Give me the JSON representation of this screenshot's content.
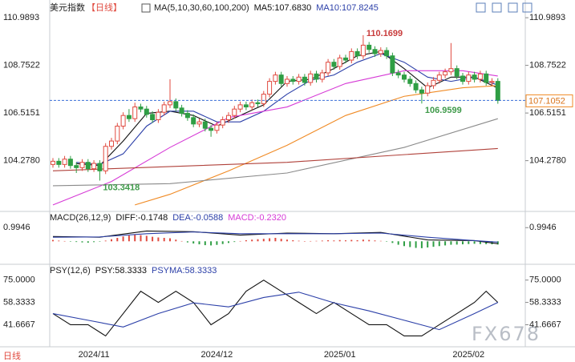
{
  "chart_data": [
    {
      "type": "candlestick",
      "title": "美元指数",
      "subtitle": "【日线】",
      "indicator": "MA(5,10,30,60,100,200)",
      "categories": [
        null,
        null,
        null,
        null,
        null,
        null,
        null,
        "2024/11",
        null,
        null,
        null,
        null,
        null,
        null,
        null,
        null,
        null,
        null,
        null,
        null,
        null,
        null,
        null,
        null,
        null,
        null,
        null,
        null,
        "2024/12",
        null,
        null,
        null,
        null,
        null,
        null,
        null,
        null,
        null,
        null,
        null,
        null,
        null,
        null,
        null,
        null,
        null,
        null,
        null,
        null,
        "2025/01",
        null,
        null,
        null,
        null,
        null,
        null,
        null,
        null,
        null,
        null,
        null,
        null,
        null,
        null,
        null,
        null,
        null,
        null,
        null,
        null,
        null,
        "2025/02",
        null,
        null,
        null,
        null,
        null
      ],
      "open": [
        104.1,
        104.25,
        104.1,
        104.35,
        104.05,
        103.95,
        104.2,
        103.9,
        104.15,
        103.8,
        104.95,
        105.2,
        105.9,
        106.4,
        106.25,
        106.8,
        106.7,
        106.45,
        106.2,
        106.55,
        106.9,
        107.05,
        106.75,
        106.5,
        106.3,
        106.0,
        106.1,
        105.8,
        105.7,
        105.95,
        106.2,
        106.4,
        106.7,
        106.9,
        106.8,
        107.0,
        106.95,
        107.4,
        108.0,
        108.3,
        107.9,
        108.1,
        108.0,
        108.2,
        107.95,
        108.35,
        108.1,
        108.4,
        108.9,
        108.7,
        109.1,
        109.0,
        109.4,
        109.2,
        109.7,
        109.5,
        109.3,
        109.45,
        109.2,
        108.4,
        108.3,
        108.1,
        107.9,
        107.6,
        107.45,
        107.8,
        108.05,
        108.3,
        108.45,
        108.6,
        108.25,
        108.0,
        108.3,
        108.1,
        108.35,
        107.95,
        108.0
      ],
      "high": [
        104.4,
        104.4,
        104.5,
        104.5,
        104.2,
        104.35,
        104.35,
        104.3,
        104.3,
        105.1,
        105.35,
        106.05,
        106.55,
        106.7,
        107.0,
        106.95,
        106.85,
        106.6,
        106.7,
        107.05,
        108.1,
        107.2,
        106.9,
        106.65,
        106.45,
        106.25,
        106.25,
        105.95,
        106.1,
        106.35,
        106.55,
        106.85,
        107.05,
        107.05,
        107.15,
        107.15,
        107.55,
        108.15,
        108.45,
        108.45,
        108.25,
        108.25,
        108.35,
        108.35,
        108.5,
        108.5,
        108.55,
        109.05,
        109.05,
        109.25,
        109.25,
        109.55,
        109.55,
        110.1699,
        109.85,
        109.65,
        109.6,
        109.6,
        109.35,
        108.55,
        108.45,
        108.25,
        108.05,
        107.75,
        107.95,
        108.2,
        108.45,
        108.6,
        109.8,
        108.75,
        108.4,
        108.45,
        108.45,
        108.5,
        108.5,
        108.15,
        108.15
      ],
      "low": [
        103.95,
        103.95,
        103.95,
        103.9,
        103.7,
        103.8,
        103.75,
        103.75,
        103.3418,
        103.65,
        104.8,
        105.05,
        105.75,
        106.1,
        106.1,
        106.55,
        106.3,
        106.05,
        106.05,
        106.4,
        106.75,
        106.6,
        106.35,
        106.15,
        105.85,
        105.85,
        105.65,
        105.4,
        105.55,
        105.8,
        106.05,
        106.25,
        106.55,
        106.65,
        106.65,
        106.8,
        106.8,
        107.25,
        107.85,
        107.75,
        107.75,
        107.85,
        107.85,
        107.8,
        107.8,
        107.95,
        107.95,
        108.25,
        108.55,
        108.55,
        108.85,
        108.85,
        109.05,
        109.05,
        109.35,
        109.15,
        109.15,
        109.05,
        108.25,
        108.15,
        107.95,
        107.75,
        107.45,
        106.9599,
        107.3,
        107.65,
        107.9,
        108.15,
        108.3,
        108.1,
        107.85,
        107.85,
        107.95,
        107.95,
        107.8,
        107.8,
        106.95
      ],
      "close": [
        104.25,
        104.1,
        104.35,
        104.05,
        103.95,
        104.2,
        103.9,
        104.15,
        103.8,
        104.95,
        105.2,
        105.9,
        106.4,
        106.25,
        106.8,
        106.7,
        106.45,
        106.2,
        106.55,
        106.9,
        107.05,
        106.75,
        106.5,
        106.3,
        106.0,
        106.1,
        105.8,
        105.7,
        105.95,
        106.2,
        106.4,
        106.7,
        106.9,
        106.8,
        107.0,
        106.95,
        107.4,
        108.0,
        108.3,
        107.9,
        108.1,
        108.0,
        108.2,
        107.95,
        108.35,
        108.1,
        108.4,
        108.9,
        108.7,
        109.1,
        109.0,
        109.4,
        109.2,
        109.7,
        109.5,
        109.3,
        109.45,
        109.2,
        108.4,
        108.3,
        108.1,
        107.9,
        107.6,
        107.45,
        107.8,
        108.05,
        108.3,
        108.45,
        108.6,
        108.25,
        108.0,
        108.3,
        108.1,
        108.35,
        107.95,
        108.0,
        107.1052
      ],
      "up_color": "#e04a3f",
      "down_color": "#2f9e44",
      "ylim": [
        101.97,
        111.52
      ],
      "yticks": [
        110.9893,
        108.7522,
        106.5151,
        {
          "value": 104.278,
          "label": "104.2780"
        }
      ],
      "last_price": 107.1052,
      "last_price_color": "#f08a24",
      "last_line_color": "#3a6fd8",
      "annotations": [
        {
          "value": 110.1699,
          "x": 53,
          "color": "#c83c3c"
        },
        {
          "value": 106.9599,
          "x": 63,
          "color": "#3f9a4a"
        },
        {
          "value": 103.3418,
          "x": 8,
          "color": "#3f9a4a"
        }
      ],
      "series": [
        {
          "name": "MA5:107.6830",
          "color": "#111111",
          "x": [
            4,
            8,
            12,
            16,
            20,
            24,
            28,
            32,
            36,
            40,
            44,
            48,
            52,
            56,
            60,
            64,
            68,
            72,
            76
          ],
          "values": [
            104.14,
            104.05,
            105.2,
            106.5,
            106.6,
            106.4,
            105.9,
            106.4,
            106.9,
            108.0,
            108.1,
            108.6,
            109.2,
            109.4,
            108.6,
            107.7,
            108.2,
            108.2,
            107.683
          ]
        },
        {
          "name": "MA10:107.8245",
          "color": "#2b3fa8",
          "x": [
            4,
            8,
            12,
            16,
            20,
            24,
            28,
            32,
            36,
            40,
            44,
            48,
            52,
            56,
            60,
            64,
            68,
            72,
            76
          ],
          "values": [
            104.2,
            104.1,
            104.6,
            105.9,
            106.6,
            106.6,
            106.1,
            106.1,
            106.6,
            107.4,
            108.05,
            108.3,
            108.9,
            109.3,
            108.9,
            108.2,
            108.0,
            108.2,
            107.8245
          ]
        },
        {
          "color": "#d63ad6",
          "x": [
            0,
            10,
            20,
            30,
            40,
            50,
            60,
            70,
            76
          ],
          "values": [
            102.2,
            103.3,
            104.9,
            106.3,
            106.8,
            107.9,
            108.5,
            108.5,
            108.25
          ]
        },
        {
          "color": "#f08a24",
          "x": [
            14,
            20,
            30,
            40,
            50,
            60,
            70,
            76
          ],
          "values": [
            102.2,
            102.7,
            103.8,
            105.0,
            106.4,
            107.3,
            107.7,
            107.8
          ]
        },
        {
          "color": "#8a8a8a",
          "x": [
            0,
            20,
            40,
            60,
            76
          ],
          "values": [
            103.1,
            103.2,
            103.7,
            104.9,
            106.25
          ]
        },
        {
          "color": "#b0413a",
          "x": [
            0,
            40,
            76
          ],
          "values": [
            103.8,
            104.2,
            104.85
          ]
        }
      ]
    },
    {
      "type": "macd",
      "title": "MACD(26,12,9)",
      "ylim": [
        -1.5,
        2.0
      ],
      "yticks": [
        0.9946
      ],
      "up_color": "#e04a3f",
      "down_color": "#2f9e44",
      "series": [
        {
          "name": "DIFF:-0.1748",
          "type": "line",
          "color": "#111111",
          "x": [
            0,
            8,
            16,
            24,
            32,
            40,
            48,
            56,
            64,
            72,
            76
          ],
          "values": [
            0.35,
            0.3,
            0.75,
            0.7,
            0.45,
            0.6,
            0.55,
            0.65,
            0.1,
            0.05,
            -0.1748
          ]
        },
        {
          "name": "DEA:-0.0588",
          "type": "line",
          "color": "#2b3fa8",
          "x": [
            0,
            8,
            16,
            24,
            32,
            40,
            48,
            56,
            64,
            72,
            76
          ],
          "values": [
            0.3,
            0.32,
            0.55,
            0.68,
            0.55,
            0.55,
            0.55,
            0.6,
            0.3,
            0.05,
            -0.0588
          ]
        },
        {
          "name": "MACD:-0.2320",
          "type": "bar",
          "color": "#d63ad6",
          "values": [
            0.1,
            0.05,
            0.02,
            -0.02,
            -0.05,
            -0.08,
            -0.1,
            -0.06,
            -0.03,
            0.05,
            0.15,
            0.25,
            0.35,
            0.42,
            0.48,
            0.45,
            0.4,
            0.33,
            0.28,
            0.25,
            0.22,
            0.12,
            0.02,
            -0.08,
            -0.16,
            -0.22,
            -0.28,
            -0.3,
            -0.26,
            -0.2,
            -0.12,
            -0.05,
            0.02,
            0.08,
            0.12,
            0.15,
            0.18,
            0.22,
            0.25,
            0.18,
            0.12,
            0.08,
            0.04,
            0.0,
            0.02,
            0.03,
            0.05,
            0.08,
            0.06,
            0.09,
            0.07,
            0.1,
            0.08,
            0.12,
            0.1,
            0.06,
            0.03,
            -0.02,
            -0.12,
            -0.25,
            -0.35,
            -0.42,
            -0.48,
            -0.5,
            -0.45,
            -0.4,
            -0.35,
            -0.3,
            -0.25,
            -0.24,
            -0.22,
            -0.2,
            -0.18,
            -0.2,
            -0.21,
            -0.22,
            -0.232
          ]
        }
      ]
    },
    {
      "type": "psy",
      "title": "PSY(12,6)",
      "ylim": [
        27,
        85
      ],
      "yticks": [
        {
          "value": 75,
          "label": "75.0000"
        },
        58.3333,
        41.6667
      ],
      "series": [
        {
          "name": "PSY:58.3333",
          "type": "line",
          "color": "#111111",
          "x": [
            0,
            3,
            6,
            9,
            12,
            15,
            18,
            21,
            24,
            27,
            30,
            33,
            36,
            39,
            42,
            45,
            48,
            51,
            54,
            57,
            60,
            63,
            66,
            69,
            72,
            74,
            76
          ],
          "values": [
            50,
            41.67,
            41.67,
            33.33,
            50,
            66.67,
            58.33,
            66.67,
            58.33,
            41.67,
            50,
            66.67,
            75,
            66.67,
            58.33,
            50,
            58.33,
            50,
            41.67,
            41.67,
            33.33,
            33.33,
            41.67,
            50,
            58.33,
            66.67,
            58.3333
          ]
        },
        {
          "name": "PSYMA:58.3333",
          "type": "line",
          "color": "#2b3fa8",
          "x": [
            0,
            6,
            12,
            18,
            24,
            30,
            36,
            42,
            48,
            54,
            60,
            66,
            72,
            76
          ],
          "values": [
            50,
            45,
            40,
            50,
            58,
            55,
            62,
            66,
            58,
            52,
            45,
            38,
            50,
            58.3333
          ]
        }
      ]
    }
  ],
  "footer": "日线",
  "watermark": "FX678"
}
